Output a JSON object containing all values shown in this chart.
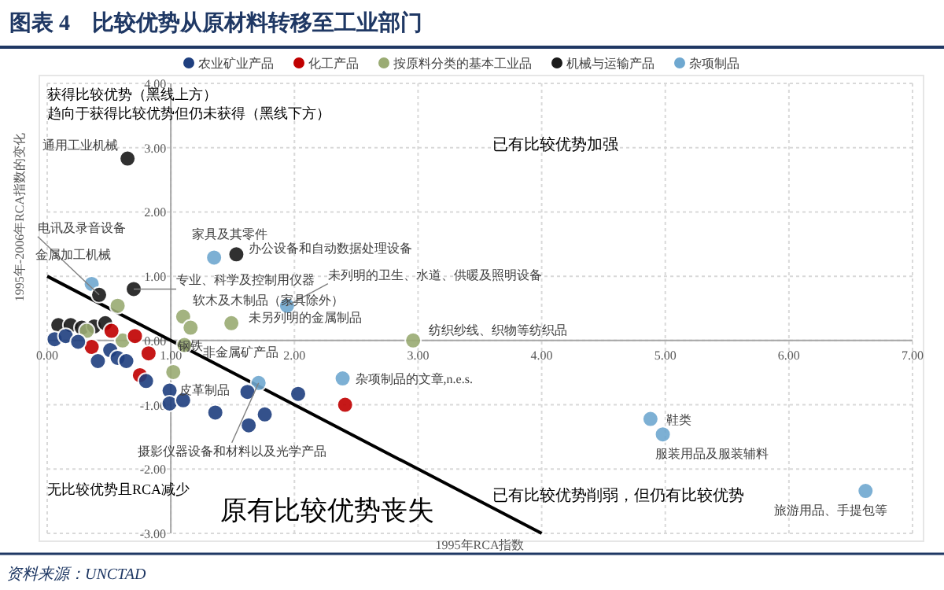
{
  "chart_data": {
    "type": "scatter",
    "title": "图表 4　比较优势从原材料转移至工业部门",
    "xlabel": "1995年RCA指数",
    "ylabel": "1995年-2006年RCA指数的变化",
    "xlim": [
      0,
      7
    ],
    "ylim": [
      -3,
      4
    ],
    "xticks": [
      {
        "value": 0,
        "label": "0.00"
      },
      {
        "value": 1,
        "label": "1.00"
      },
      {
        "value": 2,
        "label": "2.00"
      },
      {
        "value": 3,
        "label": "3.00"
      },
      {
        "value": 4,
        "label": "4.00"
      },
      {
        "value": 5,
        "label": "5.00"
      },
      {
        "value": 6,
        "label": "6.00"
      },
      {
        "value": 7,
        "label": "7.00"
      }
    ],
    "yticks": [
      {
        "value": -3,
        "label": "-3.00"
      },
      {
        "value": -2,
        "label": "-2.00"
      },
      {
        "value": -1,
        "label": "-1.00"
      },
      {
        "value": 0,
        "label": "0.00"
      },
      {
        "value": 1,
        "label": "1.00"
      },
      {
        "value": 2,
        "label": "2.00"
      },
      {
        "value": 3,
        "label": "3.00"
      },
      {
        "value": 4,
        "label": "4.00"
      }
    ],
    "grid": true,
    "legend": "top",
    "marker": "circle",
    "series": [
      {
        "name": "农业矿业产品",
        "color": "#1f3f7f",
        "x": [
          0.06,
          0.15,
          0.25,
          0.41,
          0.51,
          0.57,
          0.64,
          0.8,
          0.99,
          0.99,
          1.1,
          1.36,
          1.62,
          1.63,
          1.76,
          2.03
        ],
        "values": [
          0.02,
          0.07,
          -0.02,
          -0.32,
          -0.15,
          -0.27,
          -0.32,
          -0.63,
          -0.78,
          -0.98,
          -0.93,
          -1.12,
          -0.8,
          -1.32,
          -1.15,
          -0.83
        ]
      },
      {
        "name": "化工产品",
        "color": "#c00000",
        "x": [
          0.36,
          0.52,
          0.71,
          0.82,
          0.75,
          2.41
        ],
        "values": [
          -0.1,
          0.15,
          0.07,
          -0.2,
          -0.54,
          -1.0
        ]
      },
      {
        "name": "按原料分类的基本工业品",
        "color": "#9aab73",
        "x": [
          0.57,
          0.61,
          0.32,
          1.1,
          1.16,
          1.49,
          1.11,
          1.02,
          2.96
        ],
        "values": [
          0.54,
          0.0,
          0.15,
          0.37,
          0.2,
          0.27,
          -0.07,
          -0.49,
          0.0
        ]
      },
      {
        "name": "机械与运输产品",
        "color": "#1a1a1a",
        "x": [
          0.09,
          0.19,
          0.28,
          0.38,
          0.47,
          0.42,
          0.7,
          0.65,
          1.53
        ],
        "values": [
          0.24,
          0.24,
          0.2,
          0.22,
          0.27,
          0.71,
          0.8,
          2.83,
          1.34
        ]
      },
      {
        "name": "杂项制品",
        "color": "#6fa8d0",
        "x": [
          0.36,
          1.35,
          1.94,
          1.71,
          2.39,
          4.88,
          4.98,
          6.62
        ],
        "values": [
          0.88,
          1.29,
          0.54,
          -0.66,
          -0.59,
          -1.22,
          -1.46,
          -2.34
        ]
      },
      {
        "type": "line",
        "marker": "none",
        "color": "#000000",
        "x": [
          0,
          4
        ],
        "values": [
          1,
          -3
        ]
      }
    ],
    "annotations": [
      "获得比较优势（黑线上方）",
      "趋向于获得比较优势但仍未获得（黑线下方）",
      "已有比较优势加强",
      "无比较优势且RCA减少",
      "原有比较优势丧失",
      "已有比较优势削弱，但仍有比较优势",
      "资料来源：UNCTAD",
      {
        "text": "通用工业机械",
        "x": 0.65,
        "y": 2.83
      },
      {
        "text": "电讯及录音设备",
        "x": 0.42,
        "y": 0.71
      },
      {
        "text": "金属加工机械",
        "x": 0.36,
        "y": 0.88
      },
      {
        "text": "专业、科学及控制用仪器",
        "x": 0.7,
        "y": 0.8
      },
      {
        "text": "家具及其零件",
        "x": 1.35,
        "y": 1.29
      },
      {
        "text": "办公设备和自动数据处理设备",
        "x": 1.53,
        "y": 1.34
      },
      {
        "text": "未列明的卫生、水道、供暖及照明设备",
        "x": 1.94,
        "y": 0.54
      },
      {
        "text": "软木及木制品（家具除外）",
        "x": 1.1,
        "y": 0.37
      },
      {
        "text": "未另列明的金属制品",
        "x": 1.49,
        "y": 0.27
      },
      {
        "text": "钢铁",
        "x": 1.16,
        "y": 0.2
      },
      {
        "text": "非金属矿产品",
        "x": 1.11,
        "y": -0.07
      },
      {
        "text": "皮革制品",
        "x": 1.02,
        "y": -0.49
      },
      {
        "text": "纺织纱线、织物等纺织品",
        "x": 2.96,
        "y": 0.0
      },
      {
        "text": "杂项制品的文章,n.e.s.",
        "x": 2.39,
        "y": -0.59
      },
      {
        "text": "摄影仪器设备和材料以及光学产品",
        "x": 1.71,
        "y": -0.66
      },
      {
        "text": "鞋类",
        "x": 4.88,
        "y": -1.22
      },
      {
        "text": "服装用品及服装辅料",
        "x": 4.98,
        "y": -1.46
      },
      {
        "text": "旅游用品、手提包等",
        "x": 6.62,
        "y": -2.34
      }
    ]
  }
}
